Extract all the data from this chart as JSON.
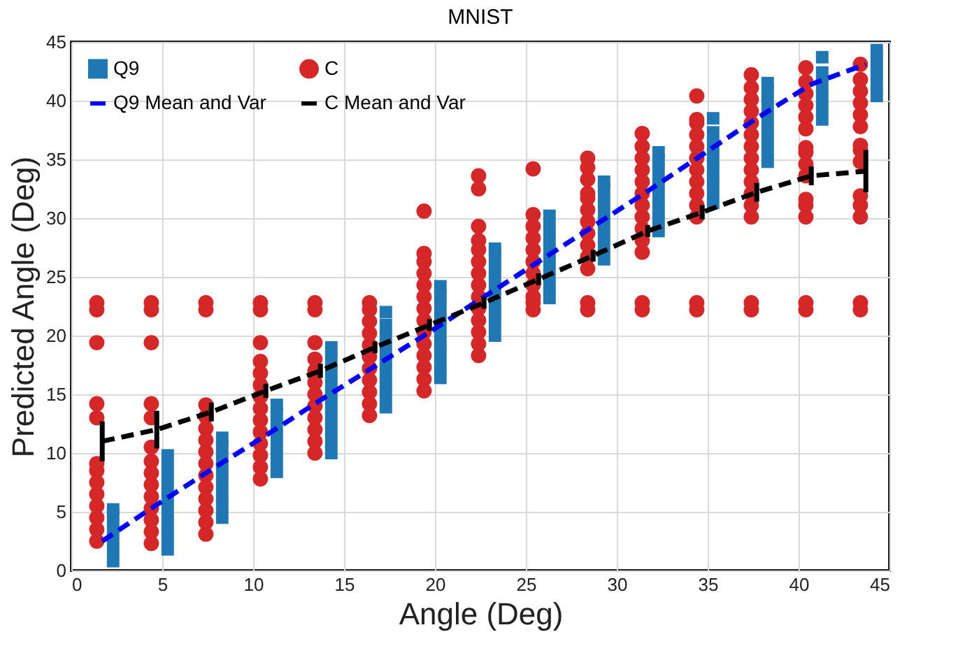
{
  "chart_data": {
    "type": "scatter",
    "title": "MNIST",
    "xlabel": "Angle (Deg)",
    "ylabel": "Predicted Angle (Deg)",
    "xlim": [
      0,
      45
    ],
    "xticks": [
      0,
      5,
      10,
      15,
      20,
      25,
      30,
      35,
      40,
      45
    ],
    "ylim": [
      0,
      45
    ],
    "yticks": [
      0,
      5,
      10,
      15,
      20,
      25,
      30,
      35,
      40,
      45
    ],
    "grid": true,
    "legend": "top left",
    "series": [
      {
        "name": "Q9",
        "marker": "square",
        "color": "#1f77b4",
        "x": [
          2.3,
          2.3,
          2.3,
          2.3,
          2.3,
          2.3,
          5.3,
          5.3,
          5.3,
          5.3,
          5.3,
          5.3,
          5.3,
          5.3,
          5.3,
          8.3,
          8.3,
          8.3,
          8.3,
          8.3,
          8.3,
          8.3,
          8.3,
          11.3,
          11.3,
          11.3,
          11.3,
          11.3,
          11.3,
          11.3,
          14.3,
          14.3,
          14.3,
          14.3,
          14.3,
          14.3,
          14.3,
          14.3,
          14.3,
          14.3,
          17.3,
          17.3,
          17.3,
          17.3,
          17.3,
          17.3,
          17.3,
          17.3,
          17.3,
          20.3,
          20.3,
          20.3,
          20.3,
          20.3,
          20.3,
          20.3,
          20.3,
          20.3,
          23.3,
          23.3,
          23.3,
          23.3,
          23.3,
          23.3,
          23.3,
          23.3,
          23.3,
          26.3,
          26.3,
          26.3,
          26.3,
          26.3,
          26.3,
          26.3,
          26.3,
          29.3,
          29.3,
          29.3,
          29.3,
          29.3,
          29.3,
          29.3,
          29.3,
          32.3,
          32.3,
          32.3,
          32.3,
          32.3,
          32.3,
          32.3,
          32.3,
          35.3,
          35.3,
          35.3,
          35.3,
          35.3,
          35.3,
          35.3,
          35.3,
          38.3,
          38.3,
          38.3,
          38.3,
          38.3,
          38.3,
          38.3,
          38.3,
          41.3,
          41.3,
          41.3,
          41.3,
          41.3,
          41.3,
          44.3,
          44.3,
          44.3,
          44.3,
          44.3
        ],
        "values": [
          0.8,
          1.8,
          2.8,
          3.8,
          4.8,
          5.2,
          1.8,
          2.8,
          3.8,
          4.8,
          5.8,
          6.8,
          7.8,
          8.8,
          9.8,
          4.5,
          5.5,
          6.5,
          7.5,
          8.5,
          9.5,
          10.5,
          11.3,
          8.4,
          9.4,
          10.4,
          11.4,
          12.4,
          13.4,
          14.1,
          10.0,
          11.0,
          12.0,
          13.0,
          14.0,
          15.0,
          16.0,
          17.0,
          18.0,
          19.0,
          13.9,
          14.9,
          15.9,
          16.9,
          17.9,
          18.9,
          19.9,
          20.9,
          22.0,
          16.4,
          17.4,
          18.4,
          19.4,
          20.4,
          21.4,
          22.4,
          23.4,
          24.2,
          20.0,
          21.0,
          22.0,
          23.0,
          24.0,
          25.0,
          26.0,
          27.0,
          27.4,
          23.2,
          24.2,
          25.2,
          26.2,
          27.2,
          28.2,
          29.2,
          30.2,
          26.5,
          27.5,
          28.5,
          29.5,
          30.5,
          31.5,
          32.5,
          33.1,
          28.9,
          29.9,
          30.9,
          31.9,
          32.9,
          33.9,
          34.9,
          35.6,
          31.3,
          32.3,
          33.3,
          34.3,
          35.3,
          36.3,
          37.3,
          38.5,
          34.8,
          35.8,
          36.8,
          37.8,
          38.8,
          39.8,
          40.8,
          41.5,
          38.4,
          39.4,
          40.4,
          41.4,
          42.4,
          43.7,
          40.4,
          41.4,
          42.4,
          43.4,
          44.3
        ]
      },
      {
        "name": "C",
        "marker": "circle",
        "color": "#d62728",
        "x": [
          1.4,
          1.4,
          1.4,
          1.4,
          1.4,
          1.4,
          1.4,
          1.4,
          1.4,
          1.4,
          1.4,
          1.4,
          1.4,
          4.4,
          4.4,
          4.4,
          4.4,
          4.4,
          4.4,
          4.4,
          4.4,
          4.4,
          4.4,
          4.4,
          4.4,
          4.4,
          4.4,
          7.4,
          7.4,
          7.4,
          7.4,
          7.4,
          7.4,
          7.4,
          7.4,
          7.4,
          7.4,
          7.4,
          7.4,
          7.4,
          7.4,
          10.4,
          10.4,
          10.4,
          10.4,
          10.4,
          10.4,
          10.4,
          10.4,
          10.4,
          10.4,
          10.4,
          10.4,
          10.4,
          10.4,
          13.4,
          13.4,
          13.4,
          13.4,
          13.4,
          13.4,
          13.4,
          13.4,
          13.4,
          13.4,
          13.4,
          13.4,
          16.4,
          16.4,
          16.4,
          16.4,
          16.4,
          16.4,
          16.4,
          16.4,
          16.4,
          16.4,
          16.4,
          19.4,
          19.4,
          19.4,
          19.4,
          19.4,
          19.4,
          19.4,
          19.4,
          19.4,
          19.4,
          19.4,
          19.4,
          19.4,
          19.4,
          22.4,
          22.4,
          22.4,
          22.4,
          22.4,
          22.4,
          22.4,
          22.4,
          22.4,
          22.4,
          22.4,
          22.4,
          22.4,
          22.4,
          25.4,
          25.4,
          25.4,
          25.4,
          25.4,
          25.4,
          25.4,
          25.4,
          25.4,
          25.4,
          25.4,
          28.4,
          28.4,
          28.4,
          28.4,
          28.4,
          28.4,
          28.4,
          28.4,
          28.4,
          28.4,
          28.4,
          28.4,
          28.4,
          31.4,
          31.4,
          31.4,
          31.4,
          31.4,
          31.4,
          31.4,
          31.4,
          31.4,
          31.4,
          31.4,
          31.4,
          31.4,
          34.4,
          34.4,
          34.4,
          34.4,
          34.4,
          34.4,
          34.4,
          34.4,
          34.4,
          34.4,
          34.4,
          34.4,
          34.4,
          37.4,
          37.4,
          37.4,
          37.4,
          37.4,
          37.4,
          37.4,
          37.4,
          37.4,
          37.4,
          37.4,
          37.4,
          37.4,
          37.4,
          37.4,
          40.4,
          40.4,
          40.4,
          40.4,
          40.4,
          40.4,
          40.4,
          40.4,
          40.4,
          40.4,
          40.4,
          40.4,
          40.4,
          40.4,
          40.4,
          43.4,
          43.4,
          43.4,
          43.4,
          43.4,
          43.4,
          43.4,
          43.4,
          43.4,
          43.4,
          43.4,
          43.4,
          43.4,
          43.4
        ],
        "values": [
          2.5,
          3.5,
          4.5,
          5.5,
          6.5,
          7.5,
          8.5,
          9.1,
          13.0,
          14.2,
          19.4,
          22.2,
          22.8,
          2.3,
          3.3,
          4.3,
          5.3,
          6.3,
          7.3,
          8.3,
          9.3,
          10.5,
          13.0,
          14.2,
          19.4,
          22.2,
          22.8,
          3.1,
          4.1,
          5.1,
          6.1,
          7.1,
          8.1,
          9.1,
          10.1,
          11.1,
          12.1,
          13.1,
          14.1,
          22.2,
          22.8,
          7.8,
          8.8,
          9.8,
          10.8,
          11.8,
          12.8,
          13.8,
          14.8,
          15.8,
          16.8,
          17.8,
          19.4,
          22.2,
          22.8,
          10.0,
          11.0,
          12.0,
          13.0,
          14.0,
          15.0,
          16.0,
          17.0,
          18.0,
          19.4,
          22.2,
          22.8,
          13.2,
          14.2,
          15.2,
          16.2,
          17.2,
          18.2,
          19.2,
          20.2,
          21.2,
          22.2,
          22.8,
          15.3,
          16.3,
          17.3,
          18.3,
          19.3,
          20.3,
          21.3,
          22.3,
          23.3,
          24.3,
          25.3,
          26.3,
          27.0,
          30.6,
          18.3,
          19.3,
          20.3,
          21.3,
          22.3,
          23.3,
          24.3,
          25.3,
          26.3,
          27.3,
          28.1,
          29.3,
          32.5,
          33.6,
          22.2,
          22.8,
          23.3,
          24.3,
          25.3,
          26.3,
          27.3,
          28.3,
          29.3,
          30.3,
          34.2,
          22.2,
          22.8,
          25.7,
          26.7,
          27.7,
          28.7,
          29.7,
          30.7,
          31.7,
          32.1,
          33.3,
          34.3,
          35.1,
          22.2,
          22.8,
          27.1,
          28.1,
          29.1,
          30.1,
          31.1,
          32.1,
          33.1,
          34.1,
          35.1,
          36.1,
          37.2,
          22.2,
          22.8,
          30.1,
          31.1,
          32.1,
          33.1,
          34.1,
          35.1,
          36.1,
          37.1,
          38.1,
          38.4,
          40.4,
          22.2,
          22.8,
          30.1,
          31.1,
          32.1,
          33.1,
          34.1,
          35.1,
          36.1,
          37.1,
          38.1,
          39.1,
          40.1,
          41.1,
          42.2,
          22.2,
          22.8,
          30.1,
          31.1,
          31.6,
          33.6,
          34.6,
          35.6,
          36.0,
          37.6,
          38.6,
          39.6,
          40.6,
          41.6,
          42.8,
          22.2,
          22.8,
          30.1,
          31.1,
          31.9,
          34.8,
          35.8,
          36.2,
          37.8,
          38.8,
          39.8,
          40.8,
          41.8,
          43.1
        ]
      },
      {
        "name": "Q9 Mean and Var",
        "type": "line",
        "line_style": "dashed",
        "color": "#0000ff",
        "x": [
          1.7,
          4.7,
          7.7,
          10.7,
          13.7,
          16.7,
          19.7,
          22.7,
          25.7,
          28.7,
          31.7,
          34.7,
          37.7,
          40.7,
          43.7
        ],
        "values": [
          2.5,
          5.6,
          8.6,
          11.5,
          14.5,
          17.4,
          20.3,
          23.3,
          26.3,
          29.3,
          32.3,
          35.4,
          38.5,
          41.4,
          43.1
        ]
      },
      {
        "name": "C  Mean and Var",
        "type": "line",
        "line_style": "dashed",
        "color": "#000000",
        "x": [
          1.7,
          4.7,
          7.7,
          10.7,
          13.7,
          16.7,
          19.7,
          22.7,
          25.7,
          28.7,
          31.7,
          34.7,
          37.7,
          40.7,
          43.7
        ],
        "values": [
          11.0,
          12.0,
          13.5,
          15.3,
          17.0,
          19.0,
          20.9,
          22.8,
          24.8,
          26.8,
          28.9,
          30.5,
          32.2,
          33.6,
          34.0
        ],
        "errors": [
          1.7,
          1.6,
          0.8,
          0.6,
          0.6,
          0.5,
          0.5,
          0.5,
          0.5,
          0.5,
          0.5,
          0.6,
          0.8,
          0.8,
          1.8
        ]
      }
    ]
  }
}
